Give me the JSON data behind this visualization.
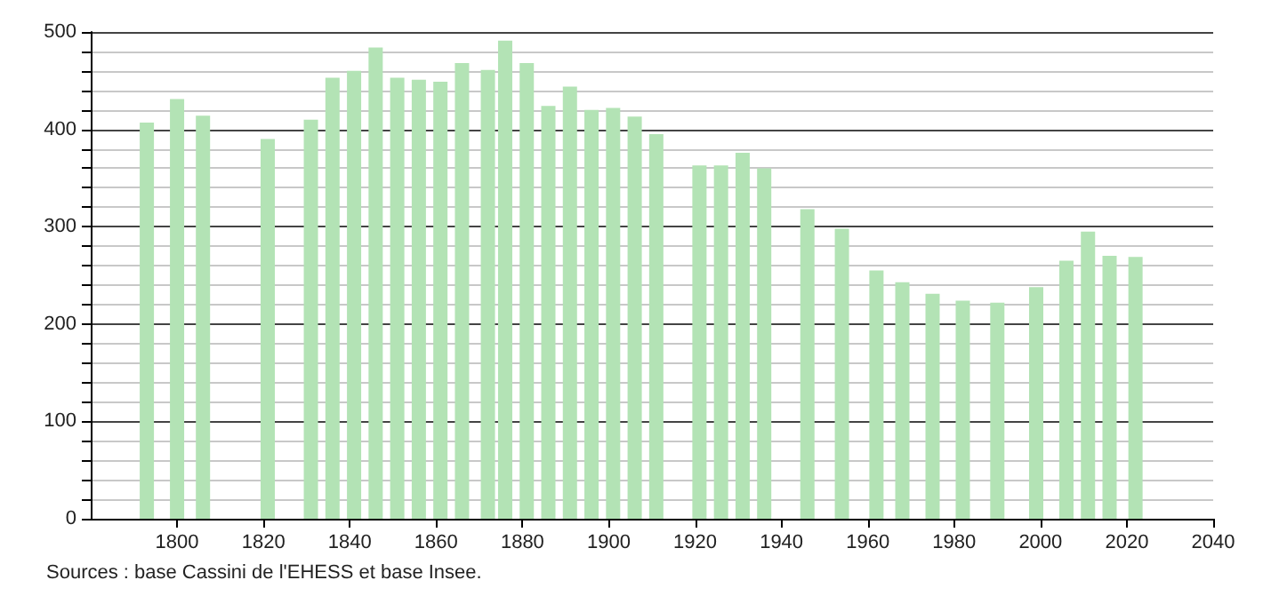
{
  "chart_data": {
    "type": "bar",
    "x": [
      1793,
      1800,
      1806,
      1821,
      1831,
      1836,
      1841,
      1846,
      1851,
      1856,
      1861,
      1866,
      1872,
      1876,
      1881,
      1886,
      1891,
      1896,
      1901,
      1906,
      1911,
      1921,
      1926,
      1931,
      1936,
      1946,
      1954,
      1962,
      1968,
      1975,
      1982,
      1990,
      1999,
      2006,
      2011,
      2016,
      2021,
      2022
    ],
    "values": [
      407,
      431,
      414,
      390,
      410,
      453,
      460,
      484,
      453,
      451,
      449,
      468,
      461,
      491,
      468,
      424,
      444,
      420,
      422,
      413,
      395,
      363,
      363,
      376,
      360,
      318,
      298,
      255,
      243,
      231,
      224,
      222,
      238,
      265,
      295,
      270,
      null,
      269
    ],
    "color": "#b3e3b5",
    "xlim": [
      1780,
      2040
    ],
    "xticks": [
      1800,
      1820,
      1840,
      1860,
      1880,
      1900,
      1920,
      1940,
      1960,
      1980,
      2000,
      2020,
      2040
    ],
    "ylim": [
      0,
      500
    ],
    "yticks": [
      0,
      {
        "value": 20,
        "label": null
      },
      {
        "value": 40,
        "label": null
      },
      {
        "value": 60,
        "label": null
      },
      {
        "value": 80,
        "label": null
      },
      100,
      {
        "value": 120,
        "label": null
      },
      {
        "value": 140,
        "label": null
      },
      {
        "value": 160,
        "label": null
      },
      {
        "value": 180,
        "label": null
      },
      200,
      {
        "value": 220,
        "label": null
      },
      {
        "value": 240,
        "label": null
      },
      {
        "value": 260,
        "label": null
      },
      {
        "value": 280,
        "label": null
      },
      300,
      {
        "value": 320,
        "label": null
      },
      {
        "value": 340,
        "label": null
      },
      {
        "value": 360,
        "label": null
      },
      {
        "value": 380,
        "label": null
      },
      400,
      {
        "value": 420,
        "label": null
      },
      {
        "value": 440,
        "label": null
      },
      {
        "value": 460,
        "label": null
      },
      {
        "value": 480,
        "label": null
      },
      500
    ],
    "grid": "y",
    "annotations": [
      "Sources : base Cassini de l'EHESS et base Insee."
    ]
  }
}
